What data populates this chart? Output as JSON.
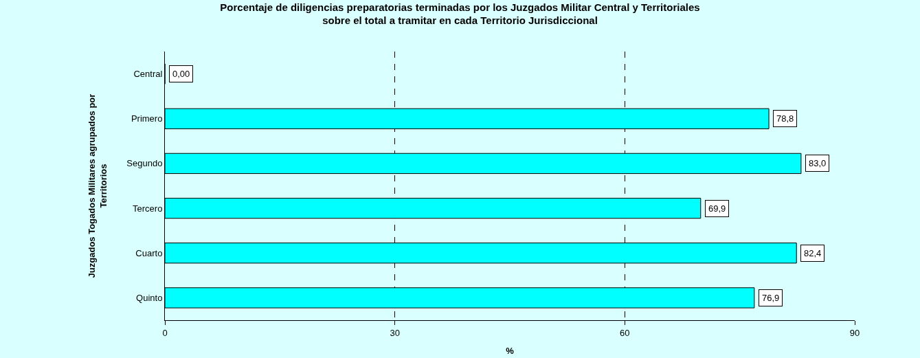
{
  "chart_data": {
    "type": "bar",
    "orientation": "horizontal",
    "title": "Porcentaje de diligencias preparatorias terminadas por los Juzgados Militar Central y Territoriales\nsobre el total a tramitar en cada Territorio Jurisdiccional",
    "xlabel": "%",
    "ylabel": "Juzgados Togados Militares agrupados por\nTerritorios",
    "categories": [
      "Central",
      "Primero",
      "Segundo",
      "Tercero",
      "Cuarto",
      "Quinto"
    ],
    "values": [
      0,
      78.8,
      83.0,
      69.9,
      82.4,
      76.9
    ],
    "value_labels": [
      "0,00",
      "78,8",
      "83,0",
      "69,9",
      "82,4",
      "76,9"
    ],
    "color": "#00ffff",
    "xlim": [
      0,
      90
    ],
    "xticks": [
      0,
      30,
      60,
      90
    ],
    "grid": "x"
  }
}
